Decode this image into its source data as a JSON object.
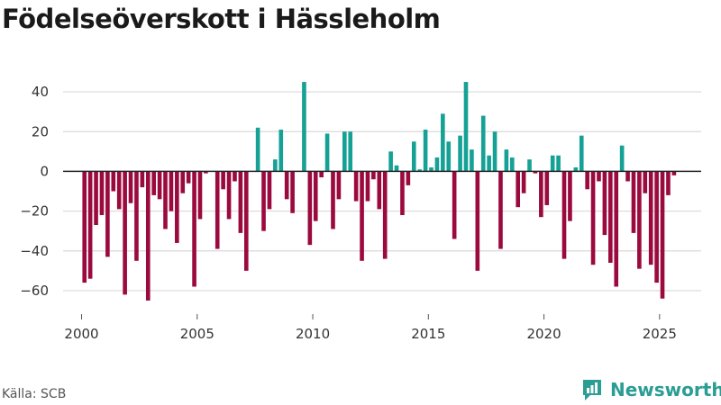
{
  "title": "Födelseöverskott i Hässleholm",
  "source": "Källa: SCB",
  "brand": {
    "name": "Newsworthy",
    "icon": "newsworthy-logo-icon",
    "color": "#2a9d94"
  },
  "colors": {
    "positive": "#16a196",
    "negative": "#9b0a3e",
    "grid": "#d9d9d9",
    "zero_line": "#222222"
  },
  "chart_data": {
    "type": "bar",
    "title": "Födelseöverskott i Hässleholm",
    "xlabel": "",
    "ylabel": "",
    "x_ticks": [
      2000,
      2005,
      2010,
      2015,
      2020,
      2025
    ],
    "y_ticks": [
      -60,
      -40,
      -20,
      0,
      20,
      40
    ],
    "xlim": [
      1999.2,
      2026.8
    ],
    "ylim": [
      -70,
      50
    ],
    "grid": true,
    "legend": "none",
    "x_start": "2000-01",
    "x_step": "quarter",
    "values": [
      -56,
      -54,
      -27,
      -22,
      -43,
      -10,
      -19,
      -62,
      -16,
      -45,
      -8,
      -65,
      -12,
      -14,
      -29,
      -20,
      -36,
      -11,
      -6,
      -58,
      -24,
      -1,
      0,
      -39,
      -9,
      -24,
      -5,
      -31,
      -50,
      0,
      22,
      -30,
      -19,
      6,
      21,
      -14,
      -21,
      0,
      45,
      -37,
      -25,
      -3,
      19,
      -29,
      -14,
      20,
      20,
      -15,
      -45,
      -15,
      -4,
      -19,
      -44,
      10,
      3,
      -22,
      -7,
      15,
      1,
      21,
      2,
      7,
      29,
      15,
      -34,
      18,
      45,
      11,
      -50,
      28,
      8,
      20,
      -39,
      11,
      7,
      -18,
      -11,
      6,
      -1,
      -23,
      -17,
      8,
      8,
      -44,
      -25,
      2,
      18,
      -9,
      -47,
      -5,
      -32,
      -46,
      -58,
      13,
      -5,
      -31,
      -49,
      -11,
      -47,
      -56,
      -64,
      -12,
      -2
    ]
  }
}
